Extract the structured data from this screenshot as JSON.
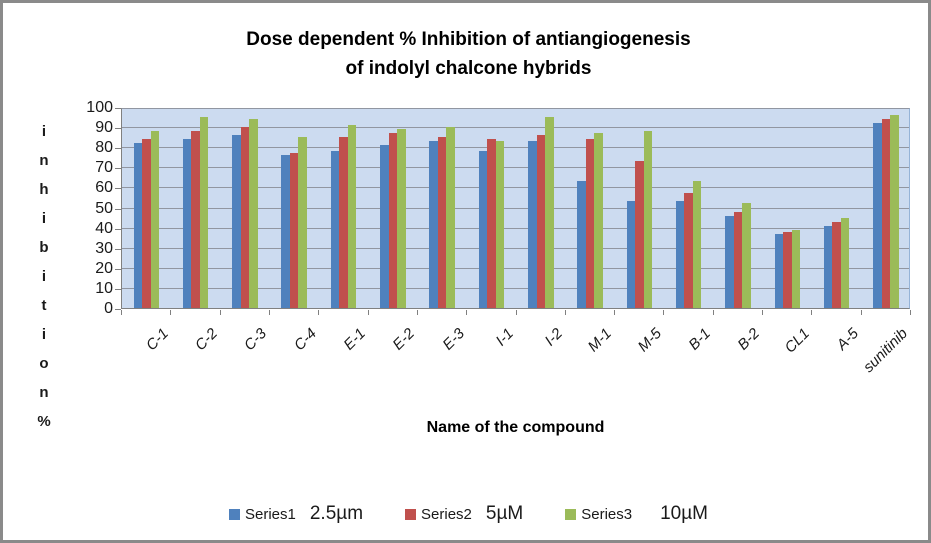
{
  "frame": {
    "border_color": "#8a8a8a",
    "background": "#ffffff"
  },
  "chart_data": {
    "type": "bar",
    "title": "Dose dependent % Inhibition of antiangiogenesis of indolyl chalcone hybrids",
    "title_line1": "Dose dependent % Inhibition of antiangiogenesis",
    "title_line2": "of indolyl chalcone hybrids",
    "ylabel": "inhibition %",
    "ylabel_stacked": [
      "i",
      "n",
      "h",
      "i",
      "b",
      "i",
      "t",
      "i",
      "o",
      "n",
      "%"
    ],
    "xlabel": "Name of the compound",
    "ylim": [
      0,
      100
    ],
    "yticks": [
      100,
      90,
      80,
      70,
      60,
      50,
      40,
      30,
      20,
      10,
      0
    ],
    "grid": true,
    "legend_position": "bottom",
    "plot_bg": "#ccdbf0",
    "grid_color": "#9196a1",
    "axis_color": "#808080",
    "categories": [
      "C-1",
      "C-2",
      "C-3",
      "C-4",
      "E-1",
      "E-2",
      "E-3",
      "I-1",
      "I-2",
      "M-1",
      "M-5",
      "B-1",
      "B-2",
      "CL1",
      "A-5",
      "sunitinib"
    ],
    "series": [
      {
        "name": "Series1",
        "dose_label": "2.5µm",
        "color": "#4f81bd",
        "values": [
          82,
          84,
          86,
          76,
          78,
          81,
          83,
          78,
          83,
          63,
          53,
          53,
          46,
          37,
          41,
          92
        ]
      },
      {
        "name": "Series2",
        "dose_label": "5µM",
        "color": "#c0504d",
        "values": [
          84,
          88,
          90,
          77,
          85,
          87,
          85,
          84,
          86,
          84,
          73,
          57,
          48,
          38,
          43,
          94
        ]
      },
      {
        "name": "Series3",
        "dose_label": "10µM",
        "color": "#9bbb59",
        "values": [
          88,
          95,
          94,
          85,
          91,
          89,
          90,
          83,
          95,
          87,
          88,
          63,
          52,
          39,
          45,
          96
        ]
      }
    ]
  }
}
